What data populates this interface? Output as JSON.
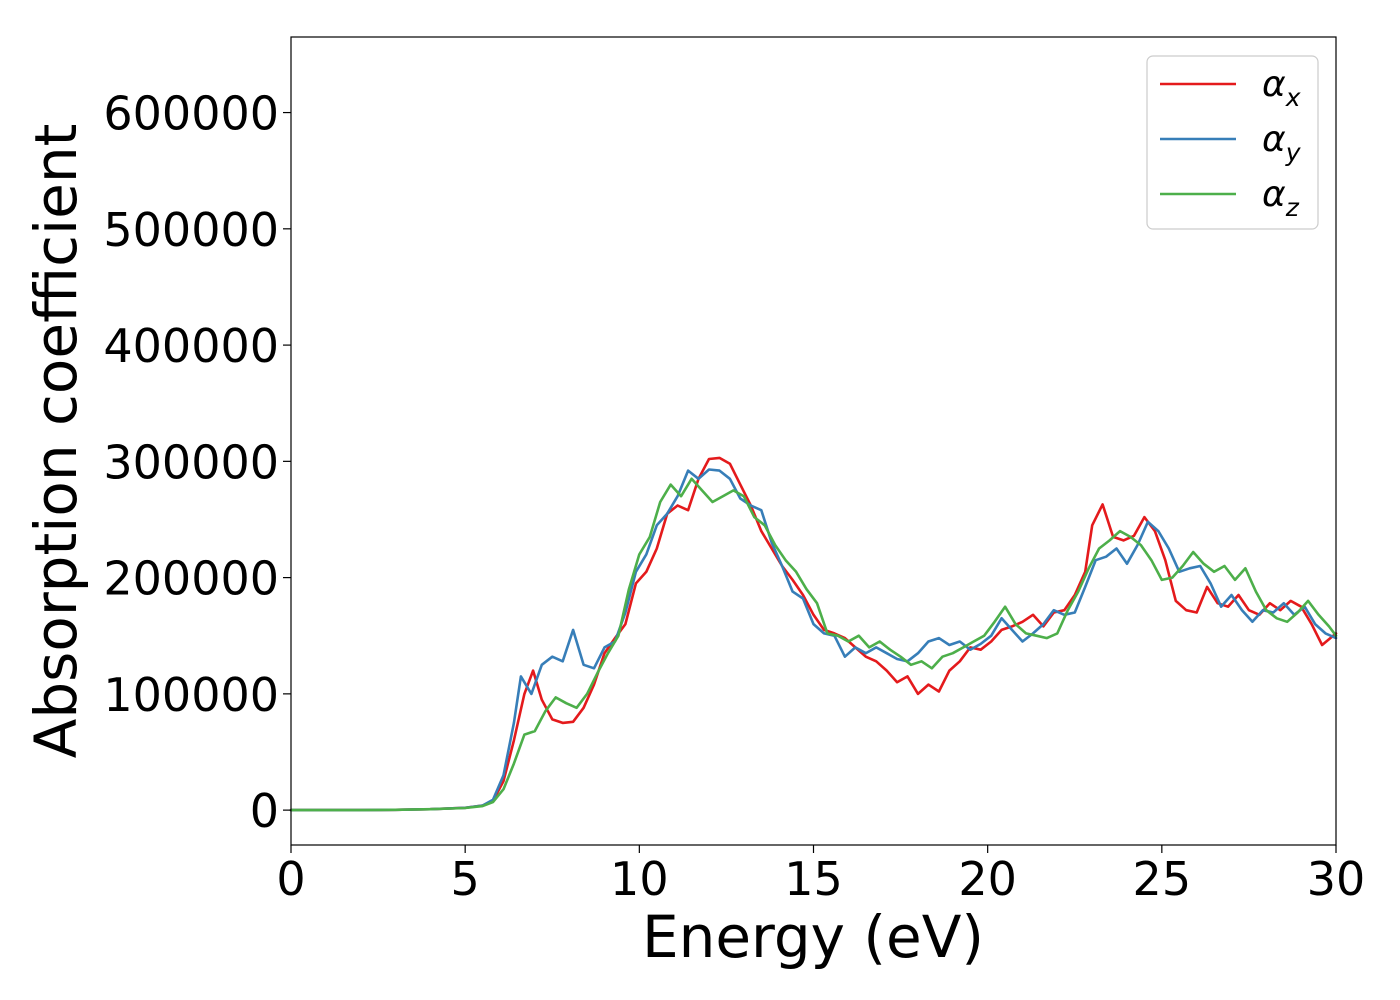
{
  "chart_data": {
    "type": "line",
    "xlabel": "Energy (eV)",
    "ylabel": "Absorption coefficient",
    "xlim": [
      0,
      30
    ],
    "ylim": [
      -30000,
      665000
    ],
    "xticks": [
      0,
      5,
      10,
      15,
      20,
      25,
      30
    ],
    "yticks": [
      0,
      100000,
      200000,
      300000,
      400000,
      500000,
      600000
    ],
    "grid": false,
    "legend_position": "top-right",
    "series": [
      {
        "name": "αx",
        "legend_base": "α",
        "legend_sub": "x",
        "color": "#e41a1c",
        "x": [
          0,
          1,
          2,
          3,
          4,
          5,
          5.5,
          5.8,
          6.1,
          6.4,
          6.7,
          6.95,
          7.2,
          7.5,
          7.8,
          8.1,
          8.4,
          8.7,
          9.0,
          9.3,
          9.6,
          9.9,
          10.2,
          10.5,
          10.8,
          11.1,
          11.4,
          11.7,
          12.0,
          12.3,
          12.6,
          12.9,
          13.2,
          13.5,
          13.8,
          14.1,
          14.4,
          14.7,
          15.0,
          15.3,
          15.6,
          15.9,
          16.2,
          16.5,
          16.8,
          17.1,
          17.4,
          17.7,
          18.0,
          18.3,
          18.6,
          18.9,
          19.2,
          19.5,
          19.8,
          20.1,
          20.4,
          20.7,
          21.0,
          21.3,
          21.6,
          21.9,
          22.2,
          22.5,
          22.8,
          23.0,
          23.3,
          23.6,
          23.9,
          24.2,
          24.5,
          24.8,
          25.1,
          25.4,
          25.7,
          26.0,
          26.3,
          26.6,
          26.9,
          27.2,
          27.5,
          27.8,
          28.1,
          28.4,
          28.7,
          29.0,
          29.3,
          29.6,
          30.0
        ],
        "y": [
          0,
          0,
          0,
          300,
          800,
          2000,
          4000,
          8000,
          25000,
          60000,
          100000,
          120000,
          95000,
          78000,
          75000,
          76000,
          88000,
          108000,
          135000,
          148000,
          160000,
          195000,
          205000,
          225000,
          255000,
          262000,
          258000,
          285000,
          302000,
          303000,
          298000,
          280000,
          262000,
          240000,
          225000,
          210000,
          198000,
          185000,
          168000,
          155000,
          152000,
          148000,
          140000,
          132000,
          128000,
          120000,
          110000,
          115000,
          100000,
          108000,
          102000,
          120000,
          128000,
          140000,
          138000,
          145000,
          155000,
          158000,
          162000,
          168000,
          158000,
          170000,
          172000,
          185000,
          205000,
          245000,
          263000,
          235000,
          232000,
          236000,
          252000,
          240000,
          215000,
          180000,
          172000,
          170000,
          192000,
          178000,
          175000,
          185000,
          172000,
          168000,
          178000,
          172000,
          180000,
          175000,
          160000,
          142000,
          152000
        ]
      },
      {
        "name": "αy",
        "legend_base": "α",
        "legend_sub": "y",
        "color": "#377eb8",
        "x": [
          0,
          1,
          2,
          3,
          4,
          5,
          5.5,
          5.8,
          6.1,
          6.4,
          6.6,
          6.9,
          7.2,
          7.5,
          7.8,
          8.1,
          8.4,
          8.7,
          9.0,
          9.3,
          9.6,
          9.9,
          10.2,
          10.5,
          10.8,
          11.1,
          11.4,
          11.7,
          12.0,
          12.3,
          12.6,
          12.9,
          13.2,
          13.5,
          13.8,
          14.1,
          14.4,
          14.7,
          15.0,
          15.3,
          15.6,
          15.9,
          16.2,
          16.5,
          16.8,
          17.1,
          17.4,
          17.7,
          18.0,
          18.3,
          18.6,
          18.9,
          19.2,
          19.5,
          19.8,
          20.1,
          20.4,
          20.7,
          21.0,
          21.3,
          21.6,
          21.9,
          22.2,
          22.5,
          22.8,
          23.1,
          23.4,
          23.7,
          24.0,
          24.3,
          24.6,
          24.9,
          25.2,
          25.5,
          25.8,
          26.1,
          26.4,
          26.7,
          27.0,
          27.3,
          27.6,
          27.9,
          28.2,
          28.5,
          28.8,
          29.1,
          29.4,
          29.7,
          30.0
        ],
        "y": [
          0,
          0,
          0,
          300,
          800,
          2000,
          4000,
          9000,
          30000,
          75000,
          115000,
          100000,
          125000,
          132000,
          128000,
          155000,
          125000,
          122000,
          140000,
          145000,
          170000,
          205000,
          220000,
          245000,
          255000,
          270000,
          292000,
          285000,
          293000,
          292000,
          285000,
          268000,
          262000,
          258000,
          230000,
          210000,
          188000,
          182000,
          160000,
          152000,
          150000,
          132000,
          140000,
          135000,
          140000,
          135000,
          130000,
          128000,
          135000,
          145000,
          148000,
          142000,
          145000,
          138000,
          143000,
          150000,
          165000,
          155000,
          145000,
          152000,
          160000,
          172000,
          168000,
          170000,
          192000,
          215000,
          218000,
          225000,
          212000,
          228000,
          248000,
          240000,
          225000,
          205000,
          208000,
          210000,
          195000,
          175000,
          185000,
          172000,
          162000,
          172000,
          170000,
          178000,
          168000,
          175000,
          160000,
          152000,
          148000
        ]
      },
      {
        "name": "αz",
        "legend_base": "α",
        "legend_sub": "z",
        "color": "#4daf4a",
        "x": [
          0,
          1,
          2,
          3,
          4,
          5,
          5.5,
          5.8,
          6.1,
          6.4,
          6.7,
          7.0,
          7.3,
          7.6,
          7.9,
          8.2,
          8.5,
          8.8,
          9.1,
          9.4,
          9.7,
          10.0,
          10.3,
          10.6,
          10.9,
          11.2,
          11.5,
          11.8,
          12.1,
          12.4,
          12.7,
          13.0,
          13.3,
          13.6,
          13.9,
          14.2,
          14.5,
          14.8,
          15.1,
          15.4,
          15.7,
          16.0,
          16.3,
          16.6,
          16.9,
          17.2,
          17.5,
          17.8,
          18.1,
          18.4,
          18.7,
          19.0,
          19.3,
          19.6,
          19.9,
          20.2,
          20.5,
          20.8,
          21.1,
          21.4,
          21.7,
          22.0,
          22.3,
          22.6,
          22.9,
          23.2,
          23.5,
          23.8,
          24.1,
          24.4,
          24.7,
          25.0,
          25.3,
          25.6,
          25.9,
          26.2,
          26.5,
          26.8,
          27.1,
          27.4,
          27.7,
          28.0,
          28.3,
          28.6,
          28.9,
          29.2,
          29.5,
          29.8,
          30.0
        ],
        "y": [
          0,
          0,
          0,
          300,
          800,
          1800,
          3500,
          7000,
          18000,
          40000,
          65000,
          68000,
          85000,
          97000,
          92000,
          88000,
          100000,
          118000,
          135000,
          150000,
          190000,
          220000,
          235000,
          265000,
          280000,
          270000,
          285000,
          275000,
          265000,
          270000,
          275000,
          270000,
          252000,
          245000,
          228000,
          215000,
          205000,
          190000,
          178000,
          152000,
          150000,
          145000,
          150000,
          140000,
          145000,
          138000,
          132000,
          125000,
          128000,
          122000,
          132000,
          135000,
          140000,
          145000,
          150000,
          162000,
          175000,
          160000,
          152000,
          150000,
          148000,
          152000,
          172000,
          188000,
          208000,
          225000,
          232000,
          240000,
          235000,
          228000,
          215000,
          198000,
          200000,
          210000,
          222000,
          212000,
          205000,
          210000,
          198000,
          208000,
          188000,
          172000,
          165000,
          162000,
          170000,
          180000,
          168000,
          158000,
          150000
        ]
      }
    ]
  }
}
